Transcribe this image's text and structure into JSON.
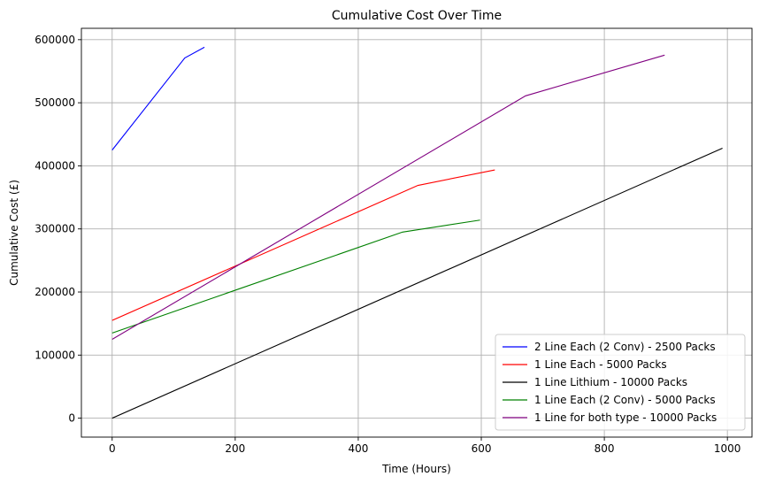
{
  "chart_data": {
    "type": "line",
    "title": "Cumulative Cost Over Time",
    "xlabel": "Time (Hours)",
    "ylabel": "Cumulative Cost (£)",
    "xlim": [
      -50,
      1040
    ],
    "ylim": [
      -30000,
      618000
    ],
    "xticks": [
      0,
      200,
      400,
      600,
      800,
      1000
    ],
    "yticks": [
      0,
      100000,
      200000,
      300000,
      400000,
      500000,
      600000
    ],
    "grid": true,
    "legend_position": "lower-right",
    "series": [
      {
        "name": "2 Line Each (2 Conv) - 2500 Packs",
        "color": "#0000ff",
        "x": [
          0,
          118,
          150
        ],
        "y": [
          425000,
          571000,
          588000
        ]
      },
      {
        "name": "1 Line Each - 5000 Packs",
        "color": "#ff0000",
        "x": [
          0,
          497,
          622
        ],
        "y": [
          155000,
          369000,
          393500
        ]
      },
      {
        "name": "1 Line Lithium - 10000 Packs",
        "color": "#000000",
        "x": [
          0,
          992
        ],
        "y": [
          0,
          428000
        ]
      },
      {
        "name": "1 Line Each (2 Conv) - 5000 Packs",
        "color": "#008000",
        "x": [
          0,
          472,
          598
        ],
        "y": [
          135000,
          295000,
          314000
        ]
      },
      {
        "name": "1 Line for both type - 10000 Packs",
        "color": "#800080",
        "x": [
          0,
          672,
          898
        ],
        "y": [
          125000,
          511000,
          575500
        ]
      }
    ]
  }
}
